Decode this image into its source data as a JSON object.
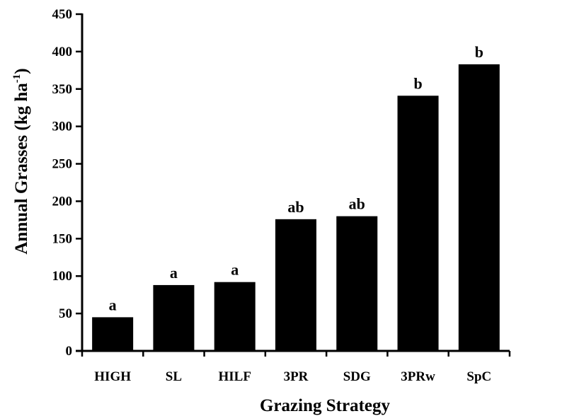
{
  "chart_data": {
    "type": "bar",
    "categories": [
      "HIGH",
      "SL",
      "HILF",
      "3PR",
      "SDG",
      "3PRw",
      "SpC"
    ],
    "values": [
      45,
      88,
      92,
      176,
      180,
      341,
      383
    ],
    "data_labels": [
      "a",
      "a",
      "a",
      "ab",
      "ab",
      "b",
      "b"
    ],
    "xlabel": "Grazing Strategy",
    "ylabel": {
      "main": "Annual Grasses (kg ha",
      "superscript": "-1",
      "close": ")"
    },
    "ylim": [
      0,
      450
    ],
    "yticks": [
      0,
      50,
      100,
      150,
      200,
      250,
      300,
      350,
      400,
      450
    ],
    "grid": false,
    "colors": {
      "bar": "#000000",
      "axis": "#000000"
    }
  }
}
